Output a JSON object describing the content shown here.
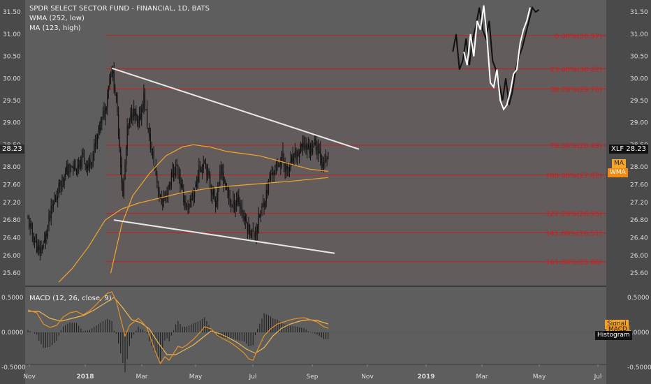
{
  "header": {
    "title": "SPDR SELECT SECTOR FUND - FINANCIAL, 1D, BATS",
    "indicator1": "WMA (252, low)",
    "indicator2": "MA (123, high)",
    "macd_title": "MACD (12, 26, close, 9)"
  },
  "colors": {
    "background": "#5e5e5e",
    "shade": "#6a5a5a",
    "fib_line": "#c21f1f",
    "fib_label": "#d01c1c",
    "candle": "#111111",
    "ma": "#f3a52a",
    "trendline": "#e8e8e8",
    "projection": "#ffffff",
    "axis_text": "#dddddd"
  },
  "tags": {
    "symbol": "XLF",
    "price": "28.23",
    "ma_label": "MA",
    "wma_label": "WMA",
    "signal_label": "Signal",
    "macd_label": "MACD",
    "histogram_label": "Histogram"
  },
  "chart_data": [
    {
      "type": "candlestick",
      "title": "SPDR SELECT SECTOR FUND - FINANCIAL, 1D, BATS",
      "x_ticks": [
        "Nov",
        "2018",
        "Mar",
        "May",
        "Jul",
        "Sep",
        "Nov",
        "2019",
        "Mar",
        "May",
        "Jul"
      ],
      "y_ticks": [
        "31.50",
        "31.00",
        "30.50",
        "30.00",
        "29.50",
        "29.00",
        "28.50",
        "28.00",
        "27.60",
        "27.20",
        "26.80",
        "26.40",
        "26.00",
        "25.60"
      ],
      "ylim": [
        25.4,
        31.7
      ],
      "last_price": 28.23,
      "price_path": [
        [
          0,
          26.8
        ],
        [
          5,
          26.4
        ],
        [
          10,
          26.05
        ],
        [
          15,
          26.3
        ],
        [
          20,
          26.9
        ],
        [
          25,
          27.3
        ],
        [
          30,
          27.7
        ],
        [
          35,
          27.9
        ],
        [
          40,
          28.0
        ],
        [
          45,
          27.9
        ],
        [
          50,
          28.2
        ],
        [
          55,
          28.0
        ],
        [
          60,
          28.4
        ],
        [
          65,
          28.9
        ],
        [
          70,
          29.3
        ],
        [
          73,
          29.9
        ],
        [
          76,
          30.23
        ],
        [
          80,
          29.5
        ],
        [
          83,
          28.5
        ],
        [
          86,
          27.3
        ],
        [
          90,
          28.8
        ],
        [
          95,
          29.3
        ],
        [
          100,
          28.9
        ],
        [
          105,
          29.6
        ],
        [
          110,
          28.6
        ],
        [
          115,
          28.0
        ],
        [
          120,
          27.2
        ],
        [
          125,
          27.3
        ],
        [
          130,
          27.8
        ],
        [
          135,
          28.0
        ],
        [
          140,
          27.4
        ],
        [
          145,
          27.0
        ],
        [
          150,
          27.4
        ],
        [
          155,
          27.9
        ],
        [
          160,
          28.2
        ],
        [
          165,
          27.6
        ],
        [
          170,
          27.2
        ],
        [
          175,
          27.9
        ],
        [
          180,
          27.5
        ],
        [
          185,
          27.1
        ],
        [
          190,
          27.3
        ],
        [
          195,
          26.9
        ],
        [
          200,
          26.6
        ],
        [
          205,
          26.45
        ],
        [
          210,
          26.9
        ],
        [
          215,
          27.3
        ],
        [
          220,
          27.8
        ],
        [
          225,
          28.0
        ],
        [
          230,
          28.2
        ],
        [
          235,
          27.9
        ],
        [
          240,
          28.15
        ],
        [
          245,
          28.3
        ],
        [
          250,
          28.5
        ],
        [
          255,
          28.4
        ],
        [
          260,
          28.55
        ],
        [
          265,
          28.3
        ],
        [
          268,
          28.0
        ],
        [
          272,
          28.23
        ]
      ],
      "ma_123_high": [
        [
          75,
          25.6
        ],
        [
          85,
          26.7
        ],
        [
          95,
          27.35
        ],
        [
          110,
          27.85
        ],
        [
          125,
          28.25
        ],
        [
          140,
          28.45
        ],
        [
          150,
          28.5
        ],
        [
          165,
          28.45
        ],
        [
          180,
          28.35
        ],
        [
          195,
          28.3
        ],
        [
          210,
          28.25
        ],
        [
          225,
          28.15
        ],
        [
          240,
          28.05
        ],
        [
          255,
          27.95
        ],
        [
          272,
          27.9
        ]
      ],
      "wma_252_low": [
        [
          28,
          25.4
        ],
        [
          40,
          25.7
        ],
        [
          55,
          26.2
        ],
        [
          70,
          26.8
        ],
        [
          85,
          27.05
        ],
        [
          100,
          27.18
        ],
        [
          120,
          27.3
        ],
        [
          140,
          27.42
        ],
        [
          160,
          27.5
        ],
        [
          180,
          27.56
        ],
        [
          200,
          27.6
        ],
        [
          220,
          27.64
        ],
        [
          240,
          27.68
        ],
        [
          260,
          27.73
        ],
        [
          272,
          27.76
        ]
      ],
      "trendlines": [
        {
          "name": "upper",
          "points": [
            [
              76,
              30.23
            ],
            [
              300,
              28.4
            ]
          ]
        },
        {
          "name": "lower",
          "points": [
            [
              78,
              26.8
            ],
            [
              278,
              26.05
            ]
          ]
        }
      ],
      "projection_black": [
        [
          385,
          30.6
        ],
        [
          388,
          31.0
        ],
        [
          391,
          30.2
        ],
        [
          394,
          30.4
        ],
        [
          397,
          30.9
        ],
        [
          400,
          30.3
        ],
        [
          403,
          30.9
        ],
        [
          406,
          31.2
        ],
        [
          409,
          31.6
        ],
        [
          412,
          31.1
        ],
        [
          415,
          30.9
        ],
        [
          418,
          31.3
        ],
        [
          421,
          30.4
        ],
        [
          424,
          30.2
        ],
        [
          427,
          29.9
        ],
        [
          430,
          29.5
        ],
        [
          433,
          30.0
        ],
        [
          436,
          29.4
        ],
        [
          439,
          29.7
        ],
        [
          442,
          30.2
        ],
        [
          445,
          30.5
        ],
        [
          448,
          30.7
        ],
        [
          451,
          31.0
        ],
        [
          454,
          31.3
        ],
        [
          457,
          31.6
        ],
        [
          460,
          31.5
        ],
        [
          463,
          31.55
        ]
      ],
      "projection_white": [
        [
          395,
          30.6
        ],
        [
          398,
          30.3
        ],
        [
          401,
          31.0
        ],
        [
          404,
          30.5
        ],
        [
          407,
          31.3
        ],
        [
          410,
          31.1
        ],
        [
          413,
          31.65
        ],
        [
          416,
          30.9
        ],
        [
          419,
          29.9
        ],
        [
          422,
          29.8
        ],
        [
          425,
          30.2
        ],
        [
          428,
          29.5
        ],
        [
          431,
          29.3
        ],
        [
          434,
          29.4
        ],
        [
          437,
          29.7
        ],
        [
          440,
          30.1
        ],
        [
          443,
          30.2
        ],
        [
          446,
          30.8
        ],
        [
          449,
          31.1
        ],
        [
          452,
          31.3
        ],
        [
          455,
          31.6
        ]
      ],
      "fib_levels": [
        {
          "label": "0.00%(30.97)",
          "value": 30.97
        },
        {
          "label": "23.60%(30.22)",
          "value": 30.22
        },
        {
          "label": "38.20%(29.76)",
          "value": 29.76
        },
        {
          "label": "78.60%(28.49)",
          "value": 28.49
        },
        {
          "label": "100.00%(27.82)",
          "value": 27.82
        },
        {
          "label": "127.20%(26.95)",
          "value": 26.95
        },
        {
          "label": "141.00%(26.51)",
          "value": 26.51
        },
        {
          "label": "161.80%(25.86)",
          "value": 25.86
        }
      ]
    },
    {
      "type": "line",
      "title": "MACD (12, 26, close, 9)",
      "y_ticks": [
        "0.5000",
        "0.0000",
        "-0.5000"
      ],
      "ylim": [
        -0.52,
        0.62
      ],
      "macd": [
        [
          0,
          0.32
        ],
        [
          8,
          0.28
        ],
        [
          14,
          0.12
        ],
        [
          20,
          0.07
        ],
        [
          26,
          0.1
        ],
        [
          32,
          0.22
        ],
        [
          38,
          0.28
        ],
        [
          44,
          0.3
        ],
        [
          50,
          0.25
        ],
        [
          56,
          0.31
        ],
        [
          62,
          0.4
        ],
        [
          68,
          0.5
        ],
        [
          72,
          0.56
        ],
        [
          76,
          0.58
        ],
        [
          80,
          0.45
        ],
        [
          84,
          0.2
        ],
        [
          88,
          -0.05
        ],
        [
          92,
          0.1
        ],
        [
          96,
          0.15
        ],
        [
          100,
          0.2
        ],
        [
          104,
          0.14
        ],
        [
          108,
          0.06
        ],
        [
          112,
          -0.12
        ],
        [
          116,
          -0.3
        ],
        [
          120,
          -0.45
        ],
        [
          124,
          -0.35
        ],
        [
          128,
          -0.4
        ],
        [
          132,
          -0.3
        ],
        [
          136,
          -0.2
        ],
        [
          140,
          -0.22
        ],
        [
          144,
          -0.18
        ],
        [
          150,
          -0.1
        ],
        [
          156,
          0.0
        ],
        [
          160,
          0.08
        ],
        [
          166,
          0.05
        ],
        [
          172,
          -0.05
        ],
        [
          178,
          -0.1
        ],
        [
          184,
          -0.15
        ],
        [
          190,
          -0.22
        ],
        [
          196,
          -0.3
        ],
        [
          200,
          -0.38
        ],
        [
          204,
          -0.4
        ],
        [
          208,
          -0.25
        ],
        [
          214,
          -0.05
        ],
        [
          220,
          0.05
        ],
        [
          226,
          0.12
        ],
        [
          232,
          0.15
        ],
        [
          238,
          0.18
        ],
        [
          244,
          0.2
        ],
        [
          250,
          0.21
        ],
        [
          256,
          0.18
        ],
        [
          262,
          0.15
        ],
        [
          268,
          0.08
        ],
        [
          272,
          0.06
        ]
      ],
      "signal": [
        [
          0,
          0.3
        ],
        [
          10,
          0.3
        ],
        [
          20,
          0.2
        ],
        [
          30,
          0.16
        ],
        [
          40,
          0.2
        ],
        [
          50,
          0.24
        ],
        [
          60,
          0.32
        ],
        [
          70,
          0.42
        ],
        [
          78,
          0.5
        ],
        [
          86,
          0.35
        ],
        [
          94,
          0.18
        ],
        [
          102,
          0.14
        ],
        [
          110,
          0.05
        ],
        [
          118,
          -0.15
        ],
        [
          126,
          -0.32
        ],
        [
          134,
          -0.32
        ],
        [
          142,
          -0.25
        ],
        [
          150,
          -0.18
        ],
        [
          158,
          -0.08
        ],
        [
          166,
          0.02
        ],
        [
          174,
          -0.02
        ],
        [
          182,
          -0.08
        ],
        [
          190,
          -0.15
        ],
        [
          198,
          -0.24
        ],
        [
          206,
          -0.3
        ],
        [
          214,
          -0.22
        ],
        [
          222,
          -0.05
        ],
        [
          230,
          0.06
        ],
        [
          238,
          0.12
        ],
        [
          246,
          0.16
        ],
        [
          254,
          0.18
        ],
        [
          262,
          0.17
        ],
        [
          272,
          0.12
        ]
      ]
    }
  ]
}
